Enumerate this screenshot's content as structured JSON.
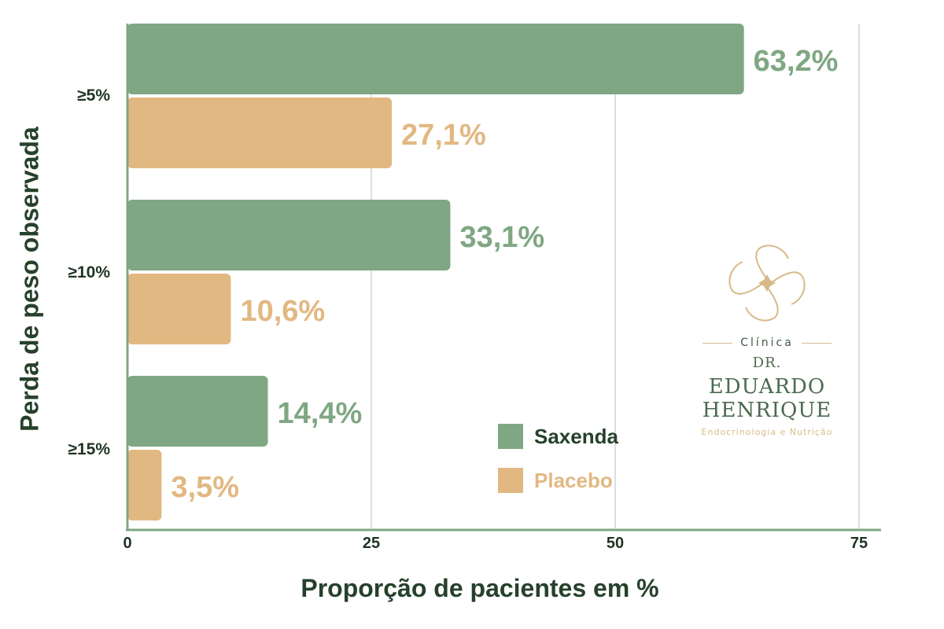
{
  "chart_data": {
    "type": "bar",
    "orientation": "horizontal",
    "categories": [
      "≥5%",
      "≥10%",
      "≥15%"
    ],
    "series": [
      {
        "name": "Saxenda",
        "values": [
          63.2,
          33.1,
          14.4
        ],
        "value_labels": [
          "63,2%",
          "33,1%",
          "14,4%"
        ],
        "color": "#7fa783"
      },
      {
        "name": "Placebo",
        "values": [
          27.1,
          10.6,
          3.5
        ],
        "value_labels": [
          "27,1%",
          "10,6%",
          "3,5%"
        ],
        "color": "#e2b882"
      }
    ],
    "xlabel": "Proporção de pacientes em %",
    "ylabel": "Perda de peso observada",
    "xlim": [
      0,
      77
    ],
    "xticks": [
      0,
      25,
      50,
      75
    ],
    "xtick_labels": [
      "0",
      "25",
      "50",
      "75"
    ],
    "grid": "vertical",
    "legend": "lower-right"
  },
  "colors": {
    "axis_title": "#26412b",
    "tick_text": "#1f3322",
    "axis_line": "#7fa783",
    "grid": "#d4d4d4"
  },
  "logo": {
    "icon": "clover-logo-icon",
    "clinic": "Clínica",
    "prefix": "DR.",
    "first_name": "EDUARDO",
    "last_name": "HENRIQUE",
    "specialty": "Endocrinologia e Nutrição"
  }
}
